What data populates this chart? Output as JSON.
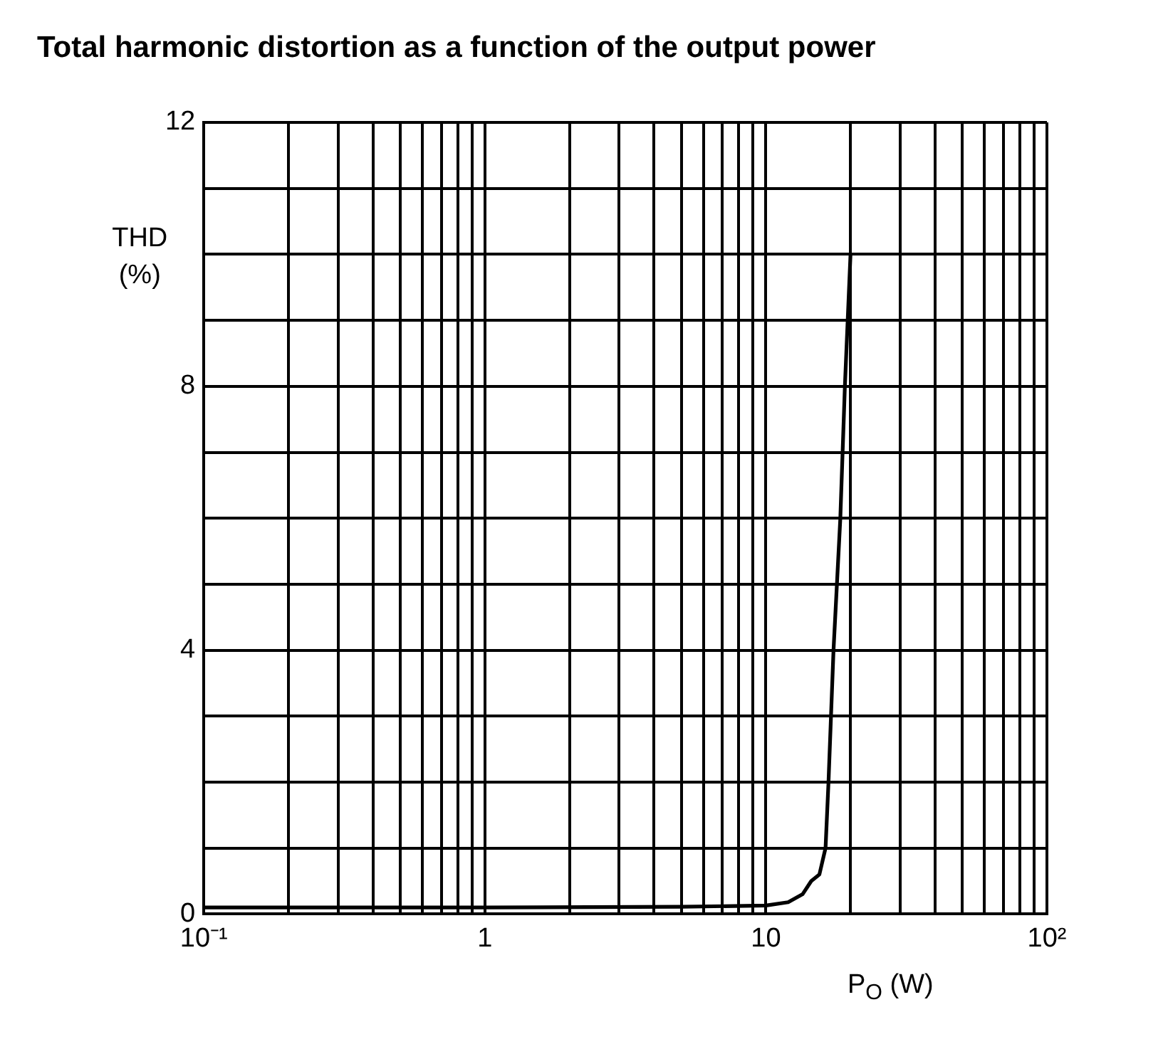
{
  "chart_data": {
    "type": "line",
    "title": "Total harmonic distortion as a function of the output power",
    "xlabel": "P$_{O}$ (W)",
    "ylabel": "THD (%)",
    "log": "x",
    "xlim": [
      0.1,
      100
    ],
    "xticks": [
      {
        "value": 0.1,
        "label": "10⁻¹"
      },
      {
        "value": 0.2,
        "label": null
      },
      {
        "value": 0.3,
        "label": null
      },
      {
        "value": 0.4,
        "label": null
      },
      {
        "value": 0.5,
        "label": null
      },
      {
        "value": 0.6,
        "label": null
      },
      {
        "value": 0.7,
        "label": null
      },
      {
        "value": 0.8,
        "label": null
      },
      {
        "value": 0.9,
        "label": null
      },
      1,
      {
        "value": 2,
        "label": null
      },
      {
        "value": 3,
        "label": null
      },
      {
        "value": 4,
        "label": null
      },
      {
        "value": 5,
        "label": null
      },
      {
        "value": 6,
        "label": null
      },
      {
        "value": 7,
        "label": null
      },
      {
        "value": 8,
        "label": null
      },
      {
        "value": 9,
        "label": null
      },
      10,
      {
        "value": 20,
        "label": null
      },
      {
        "value": 30,
        "label": null
      },
      {
        "value": 40,
        "label": null
      },
      {
        "value": 50,
        "label": null
      },
      {
        "value": 60,
        "label": null
      },
      {
        "value": 70,
        "label": null
      },
      {
        "value": 80,
        "label": null
      },
      {
        "value": 90,
        "label": null
      },
      {
        "value": 100,
        "label": "10²"
      }
    ],
    "ylim": [
      0,
      12
    ],
    "yticks": [
      0,
      {
        "value": 1,
        "label": null
      },
      {
        "value": 2,
        "label": null
      },
      {
        "value": 3,
        "label": null
      },
      4,
      {
        "value": 5,
        "label": null
      },
      {
        "value": 6,
        "label": null
      },
      {
        "value": 7,
        "label": null
      },
      8,
      {
        "value": 9,
        "label": null
      },
      {
        "value": 10,
        "label": null
      },
      {
        "value": 11,
        "label": null
      },
      12
    ],
    "grid": true,
    "legend": false,
    "marker": "none",
    "line_style": "solid",
    "series": [
      {
        "color": "#000000",
        "x": [
          0.1,
          1,
          5,
          10,
          12,
          13.5,
          14.5,
          15.5,
          16.3,
          16.7,
          17.4,
          18.4,
          19.1,
          20
        ],
        "values": [
          0.1,
          0.1,
          0.11,
          0.13,
          0.18,
          0.3,
          0.5,
          0.6,
          1,
          2,
          4,
          6,
          8,
          10
        ]
      }
    ]
  }
}
